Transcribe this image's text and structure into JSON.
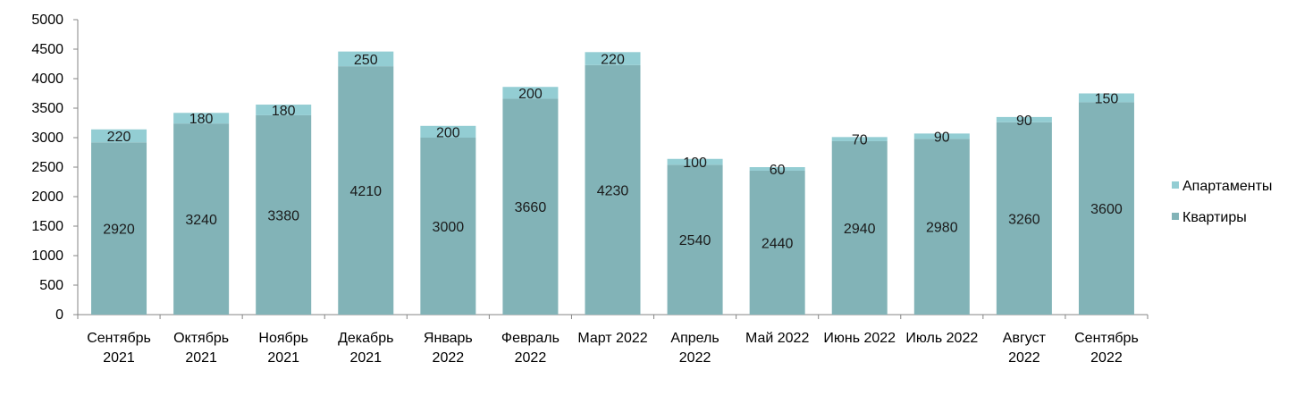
{
  "chart_data": {
    "type": "bar",
    "stacked": true,
    "categories": [
      "Сентябрь 2021",
      "Октябрь 2021",
      "Ноябрь 2021",
      "Декабрь 2021",
      "Январь 2022",
      "Февраль 2022",
      "Март 2022",
      "Апрель 2022",
      "Май 2022",
      "Июнь 2022",
      "Июль 2022",
      "Август 2022",
      "Сентябрь 2022"
    ],
    "series": [
      {
        "name": "Квартиры",
        "color": "#82b3b7",
        "values": [
          2920,
          3240,
          3380,
          4210,
          3000,
          3660,
          4230,
          2540,
          2440,
          2940,
          2980,
          3260,
          3600
        ]
      },
      {
        "name": "Апартаменты",
        "color": "#93cdd3",
        "values": [
          220,
          180,
          180,
          250,
          200,
          200,
          220,
          100,
          60,
          70,
          90,
          90,
          150
        ]
      }
    ],
    "ylim": [
      0,
      5000
    ],
    "yticks": [
      0,
      500,
      1000,
      1500,
      2000,
      2500,
      3000,
      3500,
      4000,
      4500,
      5000
    ],
    "legend_order": [
      "Апартаменты",
      "Квартиры"
    ],
    "legend_position": "right",
    "grid": false,
    "data_labels": true,
    "title": "",
    "xlabel": "",
    "ylabel": ""
  }
}
